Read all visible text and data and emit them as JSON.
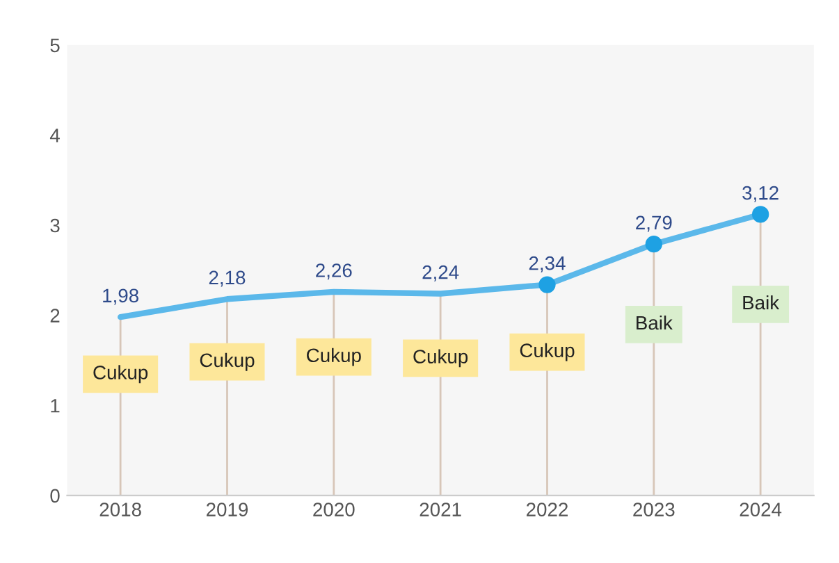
{
  "chart_data": {
    "type": "line",
    "categories": [
      "2018",
      "2019",
      "2020",
      "2021",
      "2022",
      "2023",
      "2024"
    ],
    "series": [
      {
        "color": "#5bb8ea",
        "values": [
          1.98,
          2.18,
          2.26,
          2.24,
          2.34,
          2.79,
          3.12
        ],
        "value_labels": [
          "1,98",
          "2,18",
          "2,26",
          "2,24",
          "2,34",
          "2,79",
          "3,12"
        ]
      },
      {
        "type": "scatter",
        "color": "#1ea1e3",
        "values": [
          null,
          null,
          null,
          null,
          2.34,
          2.79,
          3.12
        ],
        "marker": "circle"
      }
    ],
    "ylim": [
      0,
      5
    ],
    "yticks": [
      0,
      1,
      2,
      3,
      4,
      5
    ],
    "legend": false,
    "annotations": [
      "Cukup",
      "Cukup",
      "Cukup",
      "Cukup",
      "Cukup",
      "Baik",
      "Baik"
    ]
  }
}
